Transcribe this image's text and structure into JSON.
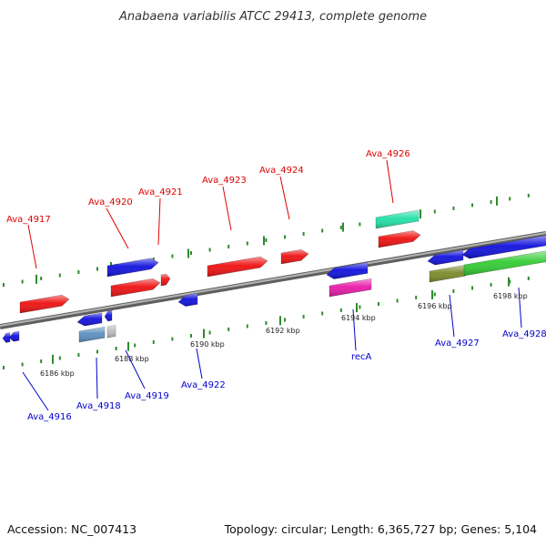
{
  "title": "Anabaena variabilis ATCC 29413, complete genome",
  "footer": {
    "accession": "Accession: NC_007413",
    "topology": "Topology: circular; Length: 6,365,727 bp; Genes: 5,104"
  },
  "colors": {
    "backbone": "#8c8c8c",
    "tick": "#2e8b2e",
    "label_top": "#dd0000",
    "label_bottom": "#0000cc",
    "gene_red": "#ee1111",
    "gene_blue": "#1111dd",
    "gene_teal": "#22e0a8",
    "gene_magenta": "#e81aa8",
    "gene_green": "#33cc33",
    "gene_olive": "#7a8a2a",
    "gene_steel": "#5a8fbf",
    "gene_grey": "#bcbcbc"
  },
  "ticks": [
    {
      "text": "6186 kbp"
    },
    {
      "text": "6188 kbp"
    },
    {
      "text": "6190 kbp"
    },
    {
      "text": "6192 kbp"
    },
    {
      "text": "6194 kbp"
    },
    {
      "text": "6196 kbp"
    },
    {
      "text": "6198 kbp"
    }
  ],
  "genes_top": [
    {
      "name": "Ava_4917"
    },
    {
      "name": "Ava_4920"
    },
    {
      "name": "Ava_4921"
    },
    {
      "name": "Ava_4923"
    },
    {
      "name": "Ava_4924"
    },
    {
      "name": "Ava_4926"
    }
  ],
  "genes_bottom": [
    {
      "name": "Ava_4916"
    },
    {
      "name": "Ava_4918"
    },
    {
      "name": "Ava_4919"
    },
    {
      "name": "Ava_4922"
    },
    {
      "name": "recA"
    },
    {
      "name": "Ava_4927"
    },
    {
      "name": "Ava_4928"
    }
  ]
}
